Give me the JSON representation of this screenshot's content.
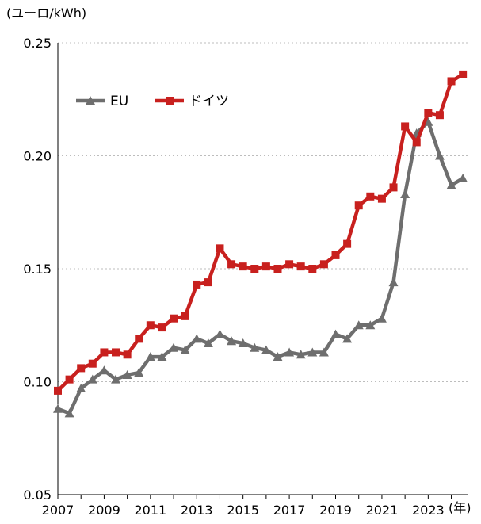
{
  "chart_data": {
    "type": "line",
    "ylabel": "(ユーロ/kWh)",
    "xlabel": "(年)",
    "ylim": [
      0.05,
      0.25
    ],
    "xlim": [
      2007,
      2024.7
    ],
    "y_ticks": [
      "0.25",
      "0.20",
      "0.15",
      "0.10",
      "0.05"
    ],
    "y_tick_values": [
      0.25,
      0.2,
      0.15,
      0.1,
      0.05
    ],
    "x_ticks": [
      "2007",
      "2009",
      "2011",
      "2013",
      "2015",
      "2017",
      "2019",
      "2021",
      "2023"
    ],
    "x_tick_values": [
      2007,
      2009,
      2011,
      2013,
      2015,
      2017,
      2019,
      2021,
      2023
    ],
    "grid": "horizontal dotted",
    "legend_position": "top-left",
    "series": [
      {
        "name": "EU",
        "color": "#6e6e6e",
        "marker": "triangle",
        "x": [
          2007.0,
          2007.5,
          2008.0,
          2008.5,
          2009.0,
          2009.5,
          2010.0,
          2010.5,
          2011.0,
          2011.5,
          2012.0,
          2012.5,
          2013.0,
          2013.5,
          2014.0,
          2014.5,
          2015.0,
          2015.5,
          2016.0,
          2016.5,
          2017.0,
          2017.5,
          2018.0,
          2018.5,
          2019.0,
          2019.5,
          2020.0,
          2020.5,
          2021.0,
          2021.5,
          2022.0,
          2022.5,
          2023.0,
          2023.5,
          2024.0,
          2024.5
        ],
        "values": [
          0.088,
          0.086,
          0.097,
          0.101,
          0.105,
          0.101,
          0.103,
          0.104,
          0.111,
          0.111,
          0.115,
          0.114,
          0.119,
          0.117,
          0.121,
          0.118,
          0.117,
          0.115,
          0.114,
          0.111,
          0.113,
          0.112,
          0.113,
          0.113,
          0.121,
          0.119,
          0.125,
          0.125,
          0.128,
          0.144,
          0.183,
          0.21,
          0.215,
          0.2,
          0.187,
          0.19
        ]
      },
      {
        "name": "ドイツ",
        "color": "#c8201e",
        "marker": "square",
        "x": [
          2007.0,
          2007.5,
          2008.0,
          2008.5,
          2009.0,
          2009.5,
          2010.0,
          2010.5,
          2011.0,
          2011.5,
          2012.0,
          2012.5,
          2013.0,
          2013.5,
          2014.0,
          2014.5,
          2015.0,
          2015.5,
          2016.0,
          2016.5,
          2017.0,
          2017.5,
          2018.0,
          2018.5,
          2019.0,
          2019.5,
          2020.0,
          2020.5,
          2021.0,
          2021.5,
          2022.0,
          2022.5,
          2023.0,
          2023.5,
          2024.0,
          2024.5
        ],
        "values": [
          0.096,
          0.101,
          0.106,
          0.108,
          0.113,
          0.113,
          0.112,
          0.119,
          0.125,
          0.124,
          0.128,
          0.129,
          0.143,
          0.144,
          0.159,
          0.152,
          0.151,
          0.15,
          0.151,
          0.15,
          0.152,
          0.151,
          0.15,
          0.152,
          0.156,
          0.161,
          0.178,
          0.182,
          0.181,
          0.186,
          0.213,
          0.206,
          0.219,
          0.218,
          0.233,
          0.236
        ]
      }
    ]
  }
}
